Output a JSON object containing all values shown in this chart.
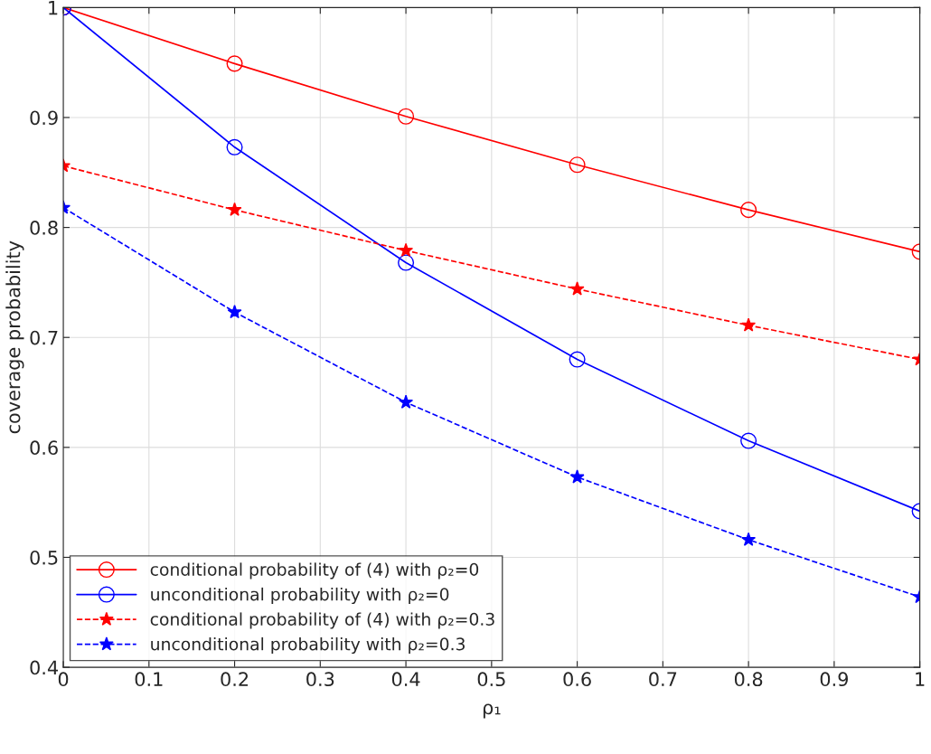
{
  "chart_data": {
    "type": "line",
    "xlabel": "ρ₁",
    "ylabel": "coverage probability",
    "x": [
      0,
      0.2,
      0.4,
      0.6,
      0.8,
      1
    ],
    "series": [
      {
        "name": "conditional probability of (4) with ρ₂=0",
        "color": "#ff0000",
        "marker": "circle",
        "line_style": "solid",
        "values": [
          1,
          0.949,
          0.901,
          0.857,
          0.816,
          0.778
        ]
      },
      {
        "name": "unconditional probability with ρ₂=0",
        "color": "#0000ff",
        "marker": "circle",
        "line_style": "solid",
        "values": [
          1,
          0.873,
          0.768,
          0.68,
          0.606,
          0.542
        ]
      },
      {
        "name": "conditional probability of (4) with ρ₂=0.3",
        "color": "#ff0000",
        "marker": "star",
        "line_style": "dashed",
        "values": [
          0.856,
          0.816,
          0.779,
          0.744,
          0.711,
          0.68
        ]
      },
      {
        "name": "unconditional probability with ρ₂=0.3",
        "color": "#0000ff",
        "marker": "star",
        "line_style": "dashed",
        "values": [
          0.818,
          0.723,
          0.641,
          0.573,
          0.516,
          0.464
        ]
      }
    ],
    "xlim": [
      0,
      1
    ],
    "xticks": [
      0,
      0.1,
      0.2,
      0.3,
      0.4,
      0.5,
      0.6,
      0.7,
      0.8,
      0.9,
      1
    ],
    "ylim": [
      0.4,
      1
    ],
    "yticks": [
      0.4,
      0.5,
      0.6,
      0.7,
      0.8,
      0.9,
      1
    ],
    "grid": true,
    "legend": "bottom left"
  }
}
